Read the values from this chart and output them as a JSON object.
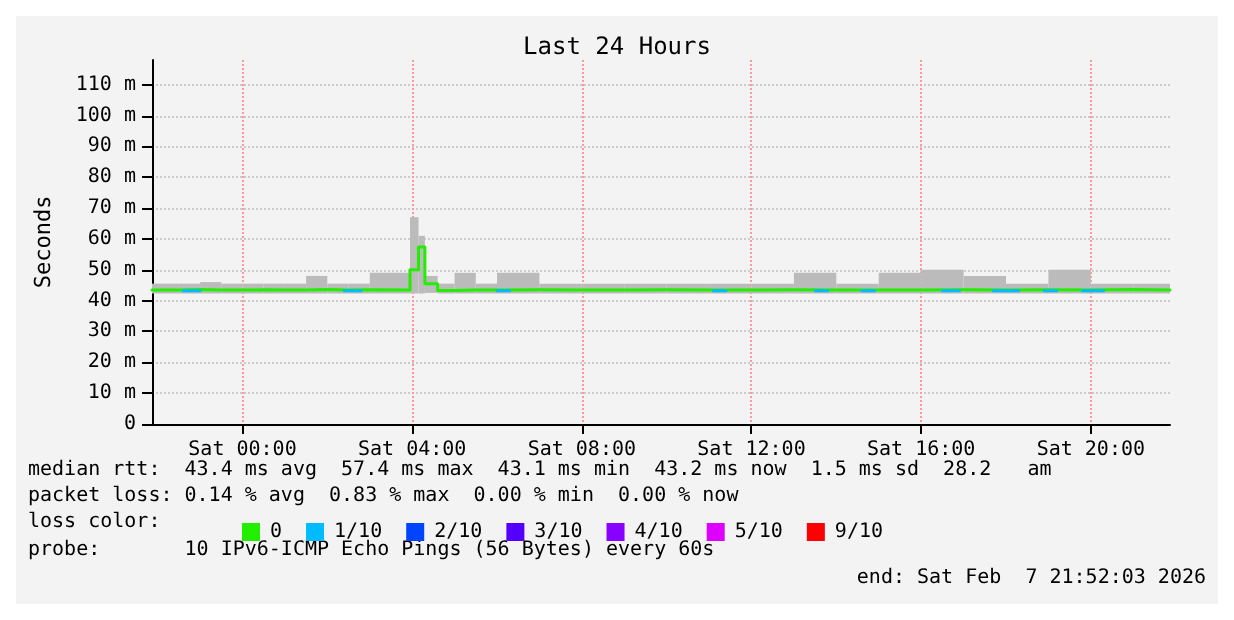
{
  "chart_data": {
    "type": "step",
    "title": "Last 24 Hours",
    "ylabel": "Seconds",
    "xlim": [
      "2026-02-06T21:52",
      "2026-02-07T21:52"
    ],
    "xticks": [
      {
        "value": "2026-02-07T00:00",
        "label": "Sat 00:00"
      },
      {
        "value": "2026-02-07T04:00",
        "label": "Sat 04:00"
      },
      {
        "value": "2026-02-07T08:00",
        "label": "Sat 08:00"
      },
      {
        "value": "2026-02-07T12:00",
        "label": "Sat 12:00"
      },
      {
        "value": "2026-02-07T16:00",
        "label": "Sat 16:00"
      },
      {
        "value": "2026-02-07T20:00",
        "label": "Sat 20:00"
      }
    ],
    "ylim": [
      0,
      118
    ],
    "yticks": [
      0,
      {
        "value": 10,
        "label": "10 m"
      },
      {
        "value": 20,
        "label": "20 m"
      },
      {
        "value": 30,
        "label": "30 m"
      },
      {
        "value": 40,
        "label": "40 m"
      },
      {
        "value": 50,
        "label": "50 m"
      },
      {
        "value": 60,
        "label": "60 m"
      },
      {
        "value": 70,
        "label": "70 m"
      },
      {
        "value": 80,
        "label": "80 m"
      },
      {
        "value": 90,
        "label": "90 m"
      },
      {
        "value": 100,
        "label": "100 m"
      },
      {
        "value": 110,
        "label": "110 m"
      }
    ],
    "grid": true,
    "legend": "bottom",
    "legend_title": "loss color:",
    "marker": "none",
    "line_style": "solid",
    "series": [
      {
        "name": "0",
        "color": "#22ee00",
        "x": [
          "2026-02-06T21:52",
          "2026-02-06T22:30",
          "2026-02-06T23:00",
          "2026-02-06T23:30",
          "2026-02-07T00:00",
          "2026-02-07T00:30",
          "2026-02-07T01:00",
          "2026-02-07T01:30",
          "2026-02-07T02:00",
          "2026-02-07T02:30",
          "2026-02-07T03:00",
          "2026-02-07T03:57",
          "2026-02-07T04:09",
          "2026-02-07T04:18",
          "2026-02-07T04:36",
          "2026-02-07T05:00",
          "2026-02-07T05:30",
          "2026-02-07T06:00",
          "2026-02-07T07:00",
          "2026-02-07T08:00",
          "2026-02-07T09:00",
          "2026-02-07T10:00",
          "2026-02-07T11:00",
          "2026-02-07T12:00",
          "2026-02-07T13:00",
          "2026-02-07T14:00",
          "2026-02-07T15:00",
          "2026-02-07T16:00",
          "2026-02-07T17:00",
          "2026-02-07T18:00",
          "2026-02-07T19:00",
          "2026-02-07T20:00",
          "2026-02-07T21:00",
          "2026-02-07T21:52"
        ],
        "values": [
          43.4,
          43.6,
          43.4,
          43.4,
          43.5,
          43.4,
          43.4,
          43.6,
          43.4,
          43.5,
          43.4,
          50,
          57.4,
          45.5,
          43.3,
          43.4,
          43.4,
          43.5,
          43.4,
          43.4,
          43.5,
          43.4,
          43.4,
          43.5,
          43.4,
          43.4,
          43.4,
          43.5,
          43.4,
          43.5,
          43.4,
          43.6,
          43.4,
          43.4
        ],
        "lower": [
          42.3,
          42.3,
          42.3,
          42.3,
          42.3,
          42.3,
          42.3,
          42.3,
          42.3,
          42.3,
          42.3,
          42.3,
          42.3,
          42.5,
          42.3,
          42.3,
          42.3,
          42.3,
          42.3,
          42.3,
          42.3,
          42.3,
          42.3,
          42.3,
          42.3,
          42.3,
          42.3,
          42.3,
          42.3,
          42.3,
          42.3,
          42.3,
          42.3,
          42.3
        ],
        "upper": [
          45.5,
          45.5,
          46,
          45.5,
          45.5,
          45.5,
          45.5,
          48,
          45.5,
          45.5,
          49,
          67,
          61,
          48,
          45.5,
          49,
          45.5,
          49,
          45.5,
          45.5,
          45.5,
          45.5,
          45.5,
          45.5,
          49,
          45.5,
          49,
          50,
          48,
          45.5,
          50,
          45.5,
          45.5,
          45.5
        ]
      },
      {
        "name": "1/10",
        "color": "#00bbff",
        "x": [
          "2026-02-06T22:36",
          "2026-02-06T23:00",
          null,
          "2026-02-07T02:24",
          "2026-02-07T02:48",
          null,
          "2026-02-07T06:00",
          "2026-02-07T06:18",
          null,
          "2026-02-07T11:06",
          "2026-02-07T11:24",
          null,
          "2026-02-07T13:30",
          "2026-02-07T13:48",
          null,
          "2026-02-07T14:36",
          "2026-02-07T14:54",
          null,
          "2026-02-07T16:30",
          "2026-02-07T16:54",
          null,
          "2026-02-07T17:42",
          "2026-02-07T18:18",
          null,
          "2026-02-07T18:54",
          "2026-02-07T19:12",
          null,
          "2026-02-07T19:48",
          "2026-02-07T20:18"
        ],
        "values": [
          43.2,
          43.2,
          null,
          43.2,
          43.2,
          null,
          43.2,
          43.2,
          null,
          43.2,
          43.2,
          null,
          43.2,
          43.2,
          null,
          43.2,
          43.2,
          null,
          43.2,
          43.2,
          null,
          43.2,
          43.2,
          null,
          43.2,
          43.2,
          null,
          43.2,
          43.2
        ]
      },
      {
        "name": "2/10",
        "color": "#0044ff"
      },
      {
        "name": "3/10",
        "color": "#5500ff"
      },
      {
        "name": "4/10",
        "color": "#8800ff"
      },
      {
        "name": "5/10",
        "color": "#dd00ff"
      },
      {
        "name": "9/10",
        "color": "#ff0000"
      }
    ],
    "annotations": [
      "median rtt:  43.4 ms avg  57.4 ms max  43.1 ms min  43.2 ms now  1.5 ms sd  28.2   am",
      "packet loss: 0.14 % avg  0.83 % max  0.00 % min  0.00 % now",
      "probe:       10 IPv6-ICMP Echo Pings (56 Bytes) every 60s",
      "end: Sat Feb  7 21:52:03 2026"
    ]
  }
}
